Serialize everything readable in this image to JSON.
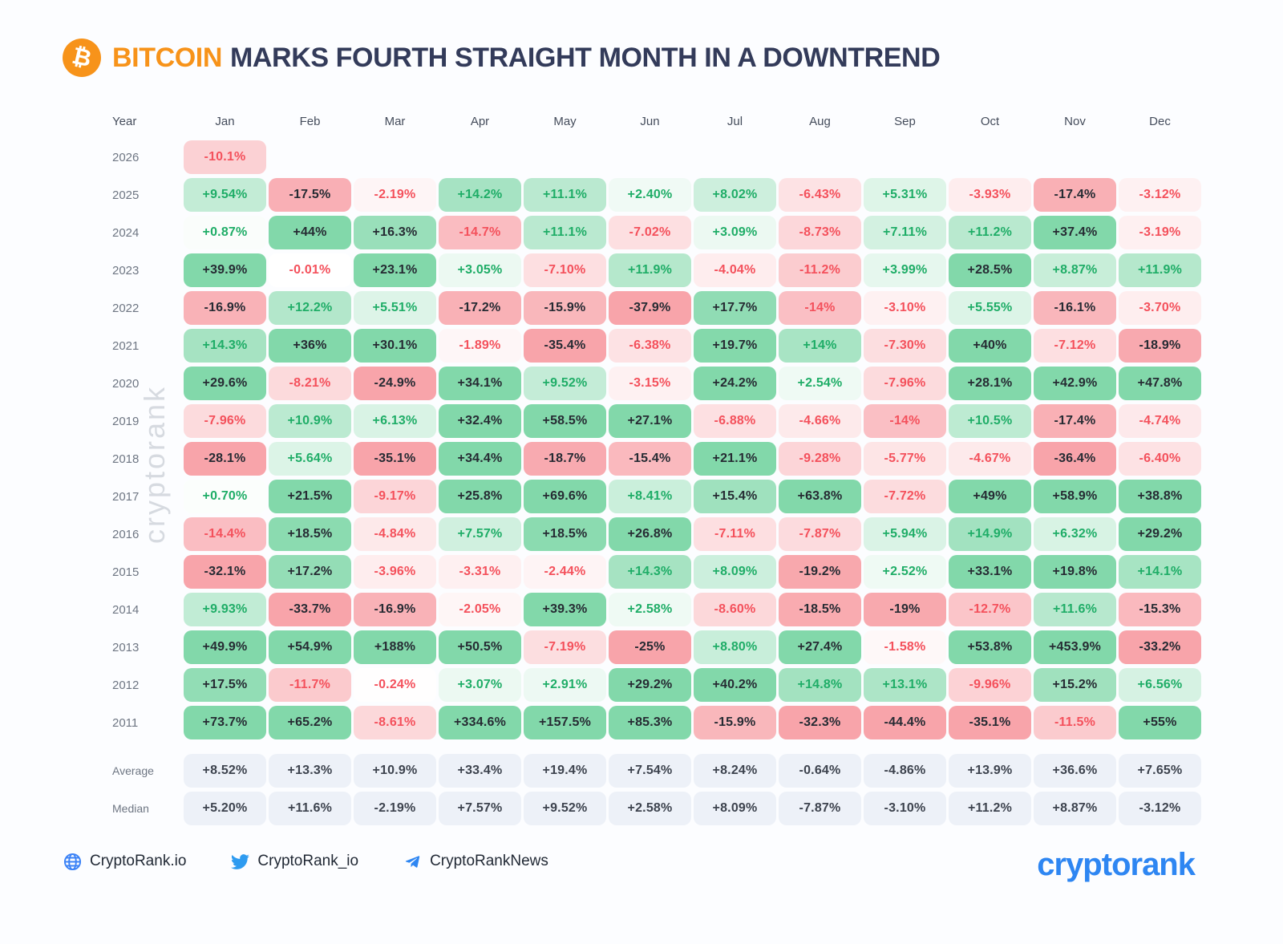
{
  "title": {
    "coin": "BITCOIN",
    "rest": "MARKS FOURTH STRAIGHT MONTH IN A DOWNTREND",
    "bitcoin_glyph": "₿"
  },
  "watermark": {
    "text": "cryptorank"
  },
  "colors": {
    "accent_orange": "#f7931a",
    "title_navy": "#333b5a",
    "positive_bg": "#82d8aa",
    "negative_bg": "#f8a4aa",
    "text_positive": "#1fad67",
    "text_negative": "#f4515c",
    "text_dark": "#262b33",
    "summary_bg": "#edf1f8",
    "brand_blue": "#2e86f2",
    "page_bg": "#fcfdff"
  },
  "chart_data": {
    "type": "heatmap",
    "title": "BITCOIN MARKS FOURTH STRAIGHT MONTH IN A DOWNTREND",
    "row_header": "Year",
    "columns": [
      "Jan",
      "Feb",
      "Mar",
      "Apr",
      "May",
      "Jun",
      "Jul",
      "Aug",
      "Sep",
      "Oct",
      "Nov",
      "Dec"
    ],
    "unit": "% monthly return",
    "color_rule": "background saturation scales with |value| (full at ±20%); text dark when |value| >= 15, else green for positive / red for negative",
    "rows": [
      {
        "label": "2026",
        "values": [
          "-10.1%",
          null,
          null,
          null,
          null,
          null,
          null,
          null,
          null,
          null,
          null,
          null
        ]
      },
      {
        "label": "2025",
        "values": [
          "+9.54%",
          "-17.5%",
          "-2.19%",
          "+14.2%",
          "+11.1%",
          "+2.40%",
          "+8.02%",
          "-6.43%",
          "+5.31%",
          "-3.93%",
          "-17.4%",
          "-3.12%"
        ]
      },
      {
        "label": "2024",
        "values": [
          "+0.87%",
          "+44%",
          "+16.3%",
          "-14.7%",
          "+11.1%",
          "-7.02%",
          "+3.09%",
          "-8.73%",
          "+7.11%",
          "+11.2%",
          "+37.4%",
          "-3.19%"
        ]
      },
      {
        "label": "2023",
        "values": [
          "+39.9%",
          "-0.01%",
          "+23.1%",
          "+3.05%",
          "-7.10%",
          "+11.9%",
          "-4.04%",
          "-11.2%",
          "+3.99%",
          "+28.5%",
          "+8.87%",
          "+11.9%"
        ]
      },
      {
        "label": "2022",
        "values": [
          "-16.9%",
          "+12.2%",
          "+5.51%",
          "-17.2%",
          "-15.9%",
          "-37.9%",
          "+17.7%",
          "-14%",
          "-3.10%",
          "+5.55%",
          "-16.1%",
          "-3.70%"
        ]
      },
      {
        "label": "2021",
        "values": [
          "+14.3%",
          "+36%",
          "+30.1%",
          "-1.89%",
          "-35.4%",
          "-6.38%",
          "+19.7%",
          "+14%",
          "-7.30%",
          "+40%",
          "-7.12%",
          "-18.9%"
        ]
      },
      {
        "label": "2020",
        "values": [
          "+29.6%",
          "-8.21%",
          "-24.9%",
          "+34.1%",
          "+9.52%",
          "-3.15%",
          "+24.2%",
          "+2.54%",
          "-7.96%",
          "+28.1%",
          "+42.9%",
          "+47.8%"
        ]
      },
      {
        "label": "2019",
        "values": [
          "-7.96%",
          "+10.9%",
          "+6.13%",
          "+32.4%",
          "+58.5%",
          "+27.1%",
          "-6.88%",
          "-4.66%",
          "-14%",
          "+10.5%",
          "-17.4%",
          "-4.74%"
        ]
      },
      {
        "label": "2018",
        "values": [
          "-28.1%",
          "+5.64%",
          "-35.1%",
          "+34.4%",
          "-18.7%",
          "-15.4%",
          "+21.1%",
          "-9.28%",
          "-5.77%",
          "-4.67%",
          "-36.4%",
          "-6.40%"
        ]
      },
      {
        "label": "2017",
        "values": [
          "+0.70%",
          "+21.5%",
          "-9.17%",
          "+25.8%",
          "+69.6%",
          "+8.41%",
          "+15.4%",
          "+63.8%",
          "-7.72%",
          "+49%",
          "+58.9%",
          "+38.8%"
        ]
      },
      {
        "label": "2016",
        "values": [
          "-14.4%",
          "+18.5%",
          "-4.84%",
          "+7.57%",
          "+18.5%",
          "+26.8%",
          "-7.11%",
          "-7.87%",
          "+5.94%",
          "+14.9%",
          "+6.32%",
          "+29.2%"
        ]
      },
      {
        "label": "2015",
        "values": [
          "-32.1%",
          "+17.2%",
          "-3.96%",
          "-3.31%",
          "-2.44%",
          "+14.3%",
          "+8.09%",
          "-19.2%",
          "+2.52%",
          "+33.1%",
          "+19.8%",
          "+14.1%"
        ]
      },
      {
        "label": "2014",
        "values": [
          "+9.93%",
          "-33.7%",
          "-16.9%",
          "-2.05%",
          "+39.3%",
          "+2.58%",
          "-8.60%",
          "-18.5%",
          "-19%",
          "-12.7%",
          "+11.6%",
          "-15.3%"
        ]
      },
      {
        "label": "2013",
        "values": [
          "+49.9%",
          "+54.9%",
          "+188%",
          "+50.5%",
          "-7.19%",
          "-25%",
          "+8.80%",
          "+27.4%",
          "-1.58%",
          "+53.8%",
          "+453.9%",
          "-33.2%"
        ]
      },
      {
        "label": "2012",
        "values": [
          "+17.5%",
          "-11.7%",
          "-0.24%",
          "+3.07%",
          "+2.91%",
          "+29.2%",
          "+40.2%",
          "+14.8%",
          "+13.1%",
          "-9.96%",
          "+15.2%",
          "+6.56%"
        ]
      },
      {
        "label": "2011",
        "values": [
          "+73.7%",
          "+65.2%",
          "-8.61%",
          "+334.6%",
          "+157.5%",
          "+85.3%",
          "-15.9%",
          "-32.3%",
          "-44.4%",
          "-35.1%",
          "-11.5%",
          "+55%"
        ]
      }
    ],
    "summary_rows": [
      {
        "label": "Average",
        "values": [
          "+8.52%",
          "+13.3%",
          "+10.9%",
          "+33.4%",
          "+19.4%",
          "+7.54%",
          "+8.24%",
          "-0.64%",
          "-4.86%",
          "+13.9%",
          "+36.6%",
          "+7.65%"
        ]
      },
      {
        "label": "Median",
        "values": [
          "+5.20%",
          "+11.6%",
          "-2.19%",
          "+7.57%",
          "+9.52%",
          "+2.58%",
          "+8.09%",
          "-7.87%",
          "-3.10%",
          "+11.2%",
          "+8.87%",
          "-3.12%"
        ]
      }
    ]
  },
  "footer": {
    "links": [
      {
        "icon": "globe-icon",
        "label": "CryptoRank.io"
      },
      {
        "icon": "twitter-icon",
        "label": "CryptoRank_io"
      },
      {
        "icon": "telegram-icon",
        "label": "CryptoRankNews"
      }
    ],
    "logo_text": "cryptorank"
  }
}
